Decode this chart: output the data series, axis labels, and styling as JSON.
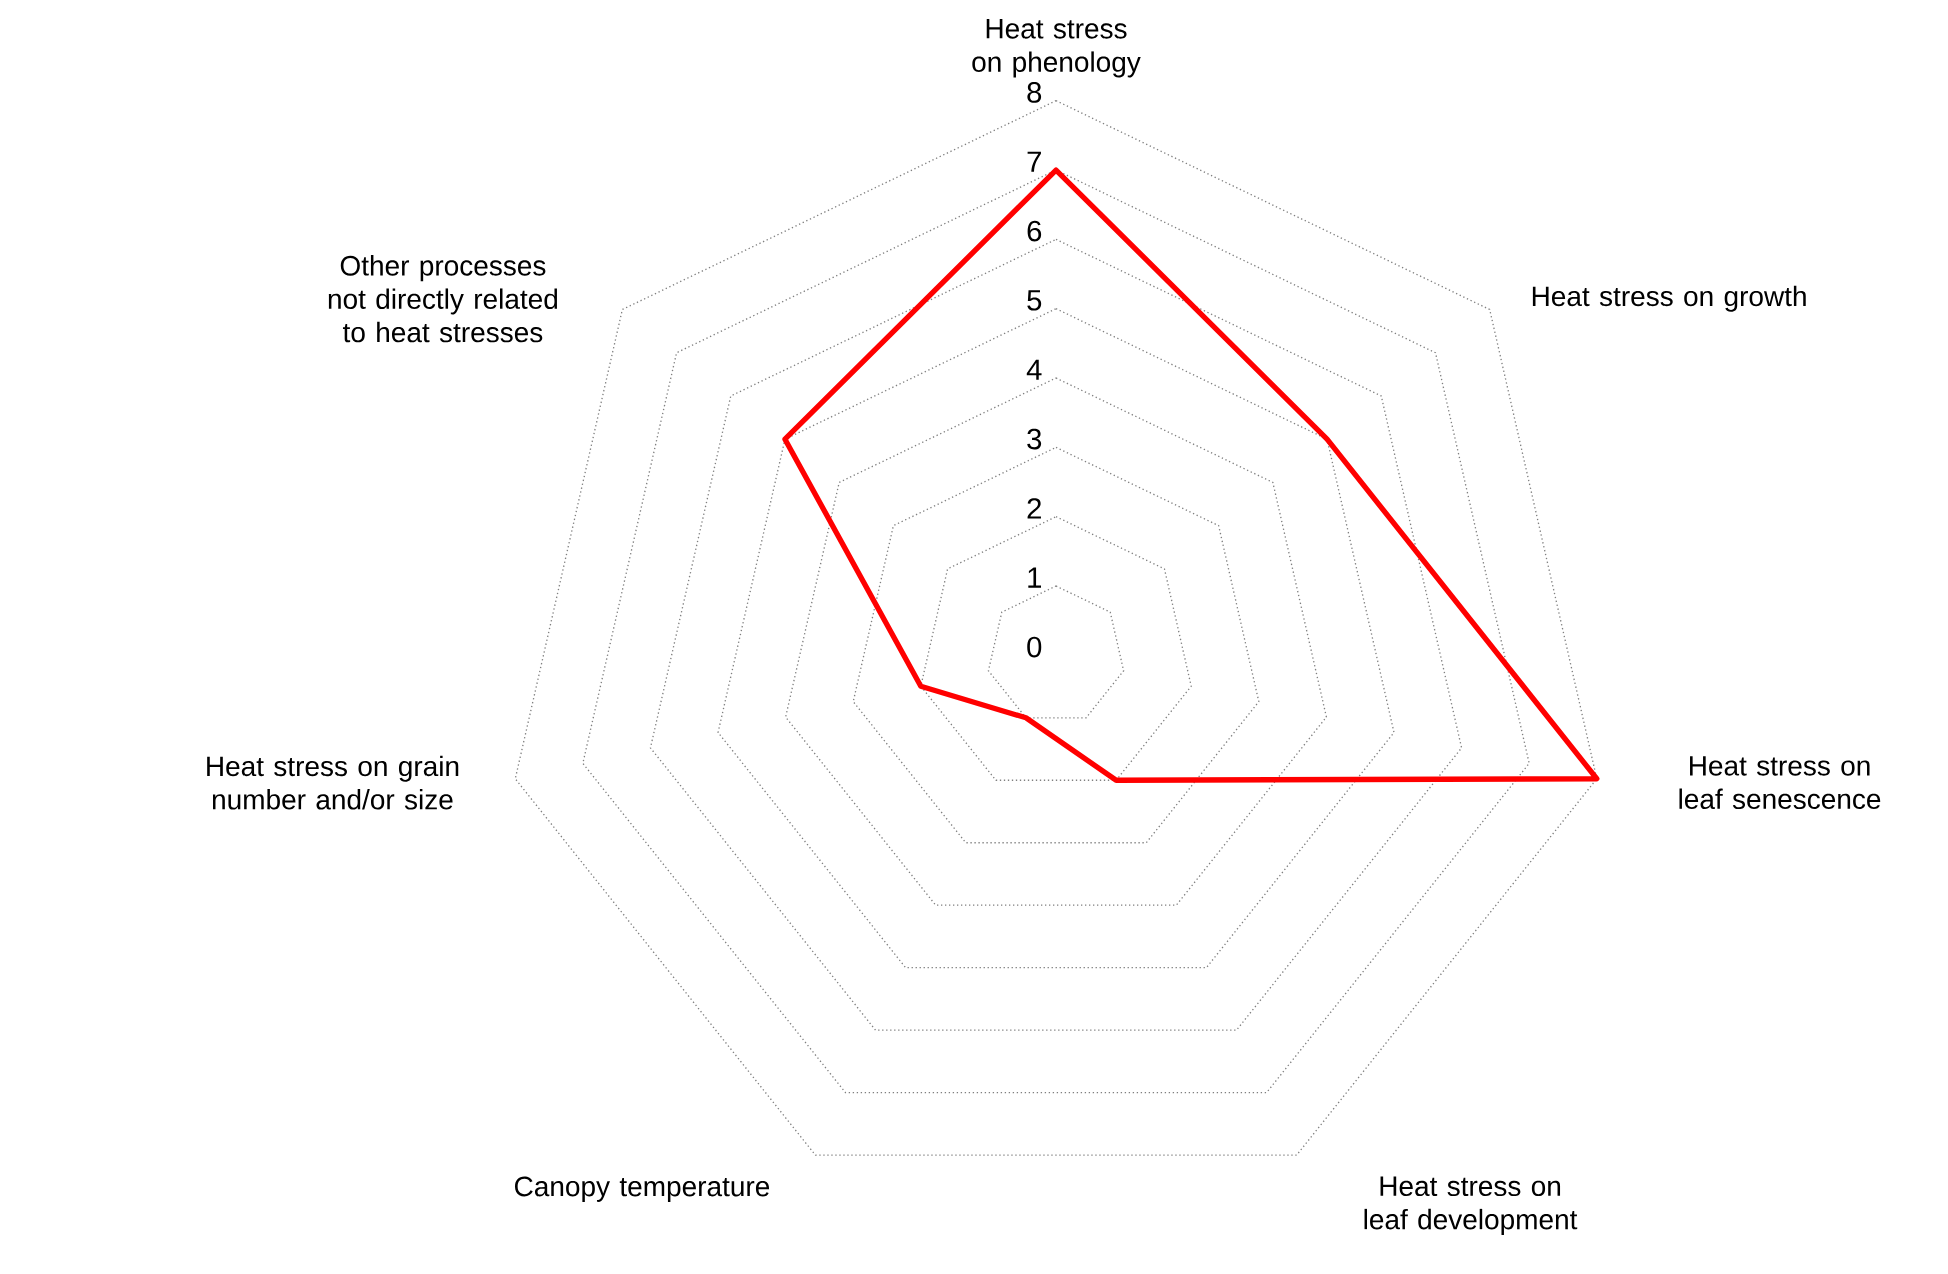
{
  "chart_data": {
    "type": "radar",
    "categories": [
      "Heat stress on phenology",
      "Heat stress on growth",
      "Heat stress on leaf senescence",
      "Heat stress on leaf development",
      "Canopy temperature",
      "Heat stress on grain number and/or size",
      "Other processes not directly related to heat stresses"
    ],
    "series": [
      {
        "color": "#ff0000",
        "values": [
          7,
          5,
          8,
          2,
          1,
          2,
          5
        ]
      }
    ],
    "ylim": [
      0,
      8
    ],
    "yticks": [
      0,
      1,
      2,
      3,
      4,
      5,
      6,
      7,
      8
    ],
    "grid": true,
    "line_style": "solid",
    "marker": "none"
  }
}
